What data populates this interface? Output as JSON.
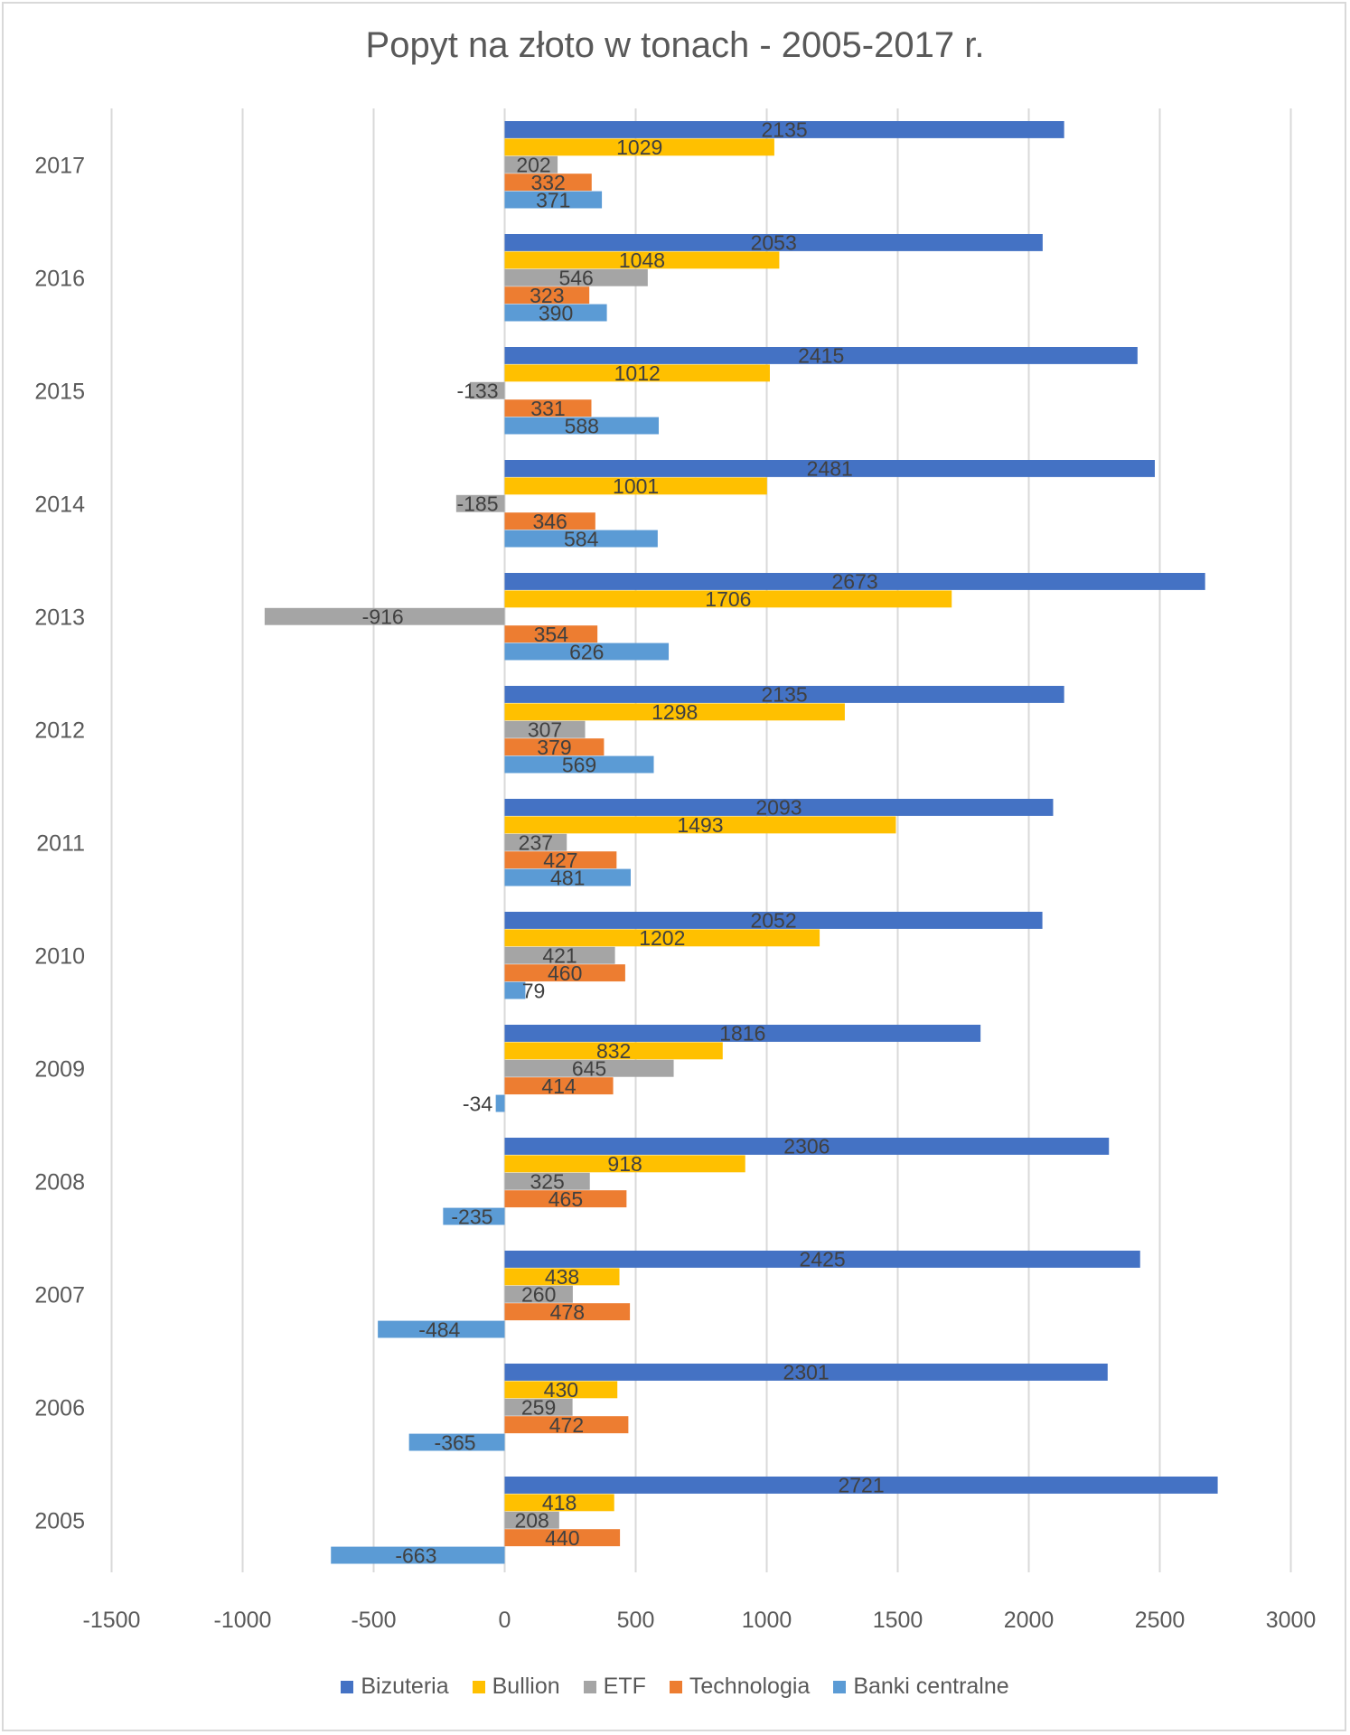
{
  "chart_data": {
    "type": "bar",
    "orientation": "horizontal",
    "title": "Popyt na złoto w tonach - 2005-2017 r.",
    "xlabel": "",
    "ylabel": "",
    "xlim": [
      -1500,
      3000
    ],
    "x_ticks": [
      "-1500",
      "-1000",
      "-500",
      "0",
      "500",
      "1000",
      "1500",
      "2000",
      "2500",
      "3000"
    ],
    "x_tick_values": [
      -1500,
      -1000,
      -500,
      0,
      500,
      1000,
      1500,
      2000,
      2500,
      3000
    ],
    "grid": true,
    "legend_position": "bottom",
    "categories": [
      "2017",
      "2016",
      "2015",
      "2014",
      "2013",
      "2012",
      "2011",
      "2010",
      "2009",
      "2008",
      "2007",
      "2006",
      "2005"
    ],
    "series": [
      {
        "name": "Bizuteria",
        "color": "#4472c4",
        "values": [
          2135,
          2053,
          2415,
          2481,
          2673,
          2135,
          2093,
          2052,
          1816,
          2306,
          2425,
          2301,
          2721
        ]
      },
      {
        "name": "Bullion",
        "color": "#ffc000",
        "values": [
          1029,
          1048,
          1012,
          1001,
          1706,
          1298,
          1493,
          1202,
          832,
          918,
          438,
          430,
          418
        ]
      },
      {
        "name": "ETF",
        "color": "#a5a5a5",
        "values": [
          202,
          546,
          -133,
          -185,
          -916,
          307,
          237,
          421,
          645,
          325,
          260,
          259,
          208
        ]
      },
      {
        "name": "Technologia",
        "color": "#ed7d31",
        "values": [
          332,
          323,
          331,
          346,
          354,
          379,
          427,
          460,
          414,
          465,
          478,
          472,
          440
        ]
      },
      {
        "name": "Banki centralne",
        "color": "#5b9bd5",
        "values": [
          371,
          390,
          588,
          584,
          626,
          569,
          481,
          79,
          -34,
          -235,
          -484,
          -365,
          -663
        ]
      }
    ]
  }
}
